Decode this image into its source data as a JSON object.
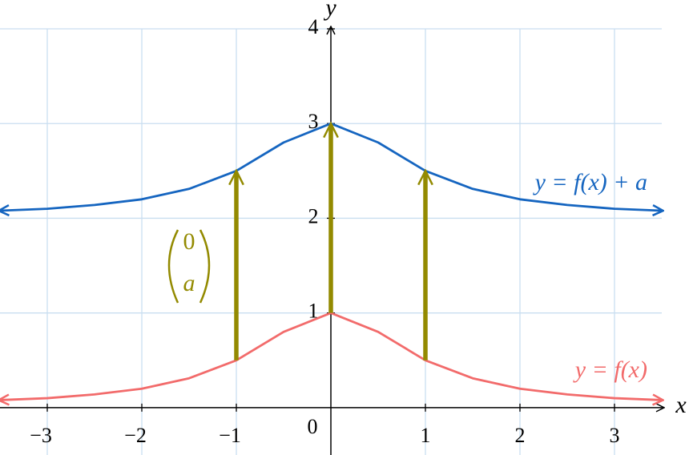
{
  "chart_data": {
    "type": "line",
    "x_label": "x",
    "y_label": "y",
    "x": [
      -3.5,
      -3,
      -2.5,
      -2,
      -1.5,
      -1,
      -0.5,
      0,
      0.5,
      1,
      1.5,
      2,
      2.5,
      3,
      3.5
    ],
    "series": [
      {
        "name": "y = f(x) + a",
        "color": "#1565c0",
        "values": [
          2.08,
          2.1,
          2.14,
          2.2,
          2.31,
          2.5,
          2.8,
          3,
          2.8,
          2.5,
          2.31,
          2.2,
          2.14,
          2.1,
          2.08
        ]
      },
      {
        "name": "y = f(x)",
        "color": "#f26b6b",
        "values": [
          0.08,
          0.1,
          0.14,
          0.2,
          0.31,
          0.5,
          0.8,
          1,
          0.8,
          0.5,
          0.31,
          0.2,
          0.14,
          0.1,
          0.08
        ]
      }
    ],
    "vectors": {
      "color": "#938a00",
      "label": [
        "0",
        "a"
      ],
      "items": [
        {
          "x": -1,
          "from": 0.5,
          "to": 2.5
        },
        {
          "x": 0,
          "from": 1,
          "to": 3
        },
        {
          "x": 1,
          "from": 0.5,
          "to": 2.5
        }
      ]
    },
    "origin_label": "0",
    "xlim": [
      -3.5,
      3.5
    ],
    "ylim": [
      -0.5,
      4
    ],
    "xticks": [
      {
        "value": -3,
        "label": "−3"
      },
      {
        "value": -2,
        "label": "−2"
      },
      {
        "value": -1,
        "label": "−1"
      },
      1,
      2,
      3
    ],
    "yticks": [
      1,
      2,
      3,
      4
    ],
    "grid": true
  }
}
